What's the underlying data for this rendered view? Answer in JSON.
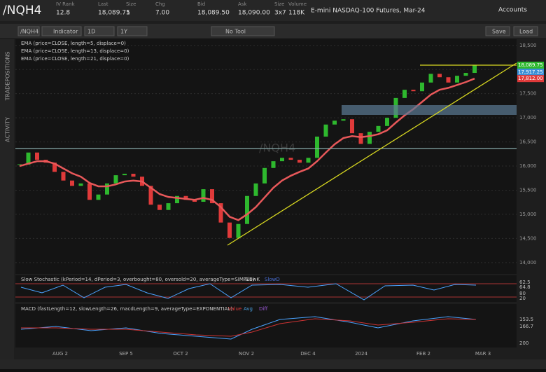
{
  "header": {
    "symbol": "/NQH4",
    "fields": [
      {
        "label": "IV Rank",
        "value": "12.8"
      },
      {
        "label": "Last",
        "value": "18,089.75"
      },
      {
        "label": "Size",
        "value": "1"
      },
      {
        "label": "Chg",
        "value": "7.00"
      },
      {
        "label": "Bid",
        "value": "18,089.50"
      },
      {
        "label": "Ask",
        "value": "18,090.00"
      },
      {
        "label": "Size",
        "value": "3x7"
      },
      {
        "label": "Volume",
        "value": "118K"
      }
    ],
    "description": "E-mini NASDAQ-100 Futures, Mar-24",
    "accounts": "Accounts"
  },
  "toolbar": {
    "symbol": "/NQH4",
    "indicator": "Indicator",
    "aggregation": "1D",
    "range": "1Y",
    "tool": "No Tool",
    "save": "Save",
    "load": "Load"
  },
  "side_tabs": [
    "POSITIONS",
    "TRADE",
    "ACTIVITY"
  ],
  "price_chart": {
    "watermark": "/NQH4",
    "studies": [
      "EMA (price=CLOSE, length=5, displace=0)",
      "EMA (price=CLOSE, length=13, displace=0)",
      "EMA (price=CLOSE, length=21, displace=0)"
    ],
    "closes": [
      16030,
      16280,
      16130,
      16070,
      15880,
      15700,
      15590,
      15640,
      15300,
      15410,
      15640,
      15810,
      15840,
      15780,
      15590,
      15200,
      15090,
      15230,
      15380,
      15300,
      15260,
      15520,
      15230,
      14830,
      14510,
      14800,
      15380,
      15640,
      15960,
      16100,
      16170,
      16130,
      16070,
      16170,
      16610,
      16860,
      16940,
      16970,
      16680,
      16460,
      16710,
      16830,
      17000,
      17410,
      17580,
      17550,
      17730,
      17910,
      17840,
      17730,
      17870,
      17930,
      18089.75
    ],
    "ema21": [
      16000,
      16050,
      16100,
      16100,
      16050,
      15950,
      15850,
      15780,
      15650,
      15580,
      15580,
      15620,
      15680,
      15700,
      15680,
      15550,
      15420,
      15360,
      15340,
      15320,
      15300,
      15340,
      15300,
      15150,
      14950,
      14880,
      15000,
      15150,
      15350,
      15550,
      15700,
      15800,
      15880,
      15950,
      16100,
      16280,
      16450,
      16580,
      16620,
      16600,
      16620,
      16660,
      16740,
      16900,
      17050,
      17180,
      17330,
      17480,
      17580,
      17620,
      17680,
      17740,
      17812
    ],
    "ylim": [
      13780,
      18540
    ],
    "yticks": [
      {
        "value": 14000,
        "label": "14,000"
      },
      {
        "value": 14500,
        "label": "14,500"
      },
      {
        "value": 15000,
        "label": "15,000"
      },
      {
        "value": 15500,
        "label": "15,500"
      },
      {
        "value": 16000,
        "label": "16,000"
      },
      {
        "value": 16500,
        "label": "16,500"
      },
      {
        "value": 17000,
        "label": "17,000"
      },
      {
        "value": 17500,
        "label": "17,500"
      },
      {
        "value": 18000,
        "label": "18,000"
      },
      {
        "value": 18500,
        "label": "18,500"
      }
    ],
    "price_badges": [
      {
        "value": 18089.75,
        "label": "18,089.75"
      },
      {
        "value": 17917.25,
        "label": "17,917.25"
      },
      {
        "value": 17812,
        "label": "17,812.00"
      }
    ],
    "xlabels": [
      "AUG 2",
      "SEP 5",
      "OCT 2",
      "NOV 2",
      "DEC 4",
      "2024",
      "FEB 2",
      "MAR 3"
    ]
  },
  "stochastic": {
    "title": "Slow Stochastic (kPeriod=14, dPeriod=3, overbought=80, oversold=20, averageType=SIMPLE)",
    "legend": [
      "SlowK",
      "SlowD"
    ],
    "labels": [
      "62.5",
      "64.8",
      "80",
      "20"
    ]
  },
  "macd": {
    "title": "MACD (fastLength=12, slowLength=26, macdLength=9, averageType=EXPONENTIAL)",
    "legend": [
      "Value",
      "Avg",
      "Diff"
    ],
    "labels": [
      "153.5",
      "166.7",
      "200"
    ]
  }
}
